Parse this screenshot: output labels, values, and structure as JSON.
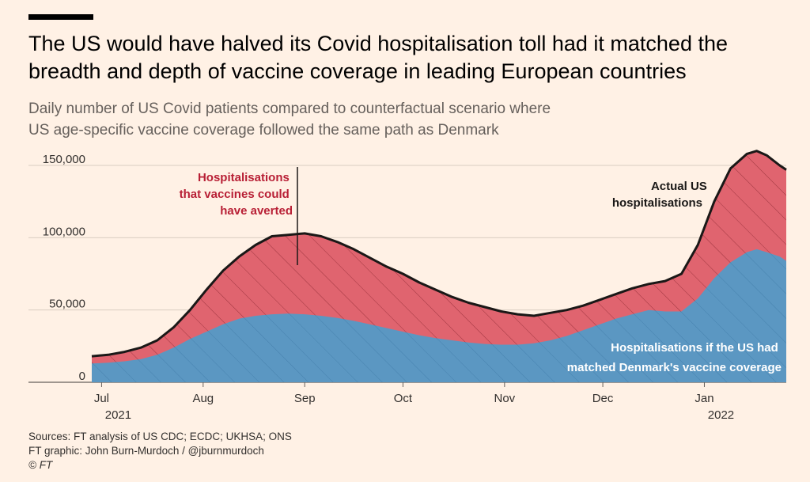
{
  "title": "The US would have halved its Covid hospitalisation toll had it matched the breadth and depth of vaccine coverage in leading European countries",
  "subtitle_lines": [
    "Daily number of US Covid patients compared to counterfactual scenario where",
    "US age-specific vaccine coverage followed the same path as Denmark"
  ],
  "sources_lines": [
    "Sources: FT analysis of US CDC; ECDC; UKHSA; ONS",
    "FT graphic: John Burn-Murdoch / @jburnmurdoch",
    "© FT"
  ],
  "colors": {
    "background": "#fff1e5",
    "actual": "#e0646f",
    "counterfactual": "#5b97c2",
    "line": "#1a1817",
    "annotation_red": "#b81f35"
  },
  "chart_data": {
    "type": "area",
    "x_unit": "days since 28 Jun 2021",
    "xlim": [
      0,
      212
    ],
    "ylim": [
      0,
      150000
    ],
    "yticks": [
      0,
      50000,
      100000,
      150000
    ],
    "ytick_labels": [
      "0",
      "50,000",
      "100,000",
      "150,000"
    ],
    "xticks": [
      {
        "x": 3,
        "label": "Jul",
        "year": "2021"
      },
      {
        "x": 34,
        "label": "Aug",
        "year": ""
      },
      {
        "x": 65,
        "label": "Sep",
        "year": ""
      },
      {
        "x": 95,
        "label": "Oct",
        "year": ""
      },
      {
        "x": 126,
        "label": "Nov",
        "year": ""
      },
      {
        "x": 156,
        "label": "Dec",
        "year": ""
      },
      {
        "x": 187,
        "label": "Jan",
        "year": "2022"
      }
    ],
    "series": [
      {
        "name": "Actual US hospitalisations",
        "x": [
          0,
          5,
          10,
          15,
          20,
          25,
          30,
          35,
          40,
          45,
          50,
          55,
          60,
          65,
          70,
          75,
          80,
          85,
          90,
          95,
          100,
          105,
          110,
          115,
          120,
          125,
          130,
          135,
          140,
          145,
          150,
          155,
          160,
          165,
          170,
          175,
          180,
          185,
          190,
          195,
          200,
          203,
          206,
          210,
          212
        ],
        "values": [
          18000,
          19000,
          21000,
          24000,
          29000,
          38000,
          50000,
          64000,
          77000,
          87000,
          95000,
          101000,
          102000,
          103000,
          101000,
          97000,
          92000,
          86000,
          80000,
          75000,
          69000,
          64000,
          59000,
          55000,
          52000,
          49000,
          47000,
          46000,
          48000,
          50000,
          53000,
          57000,
          61000,
          65000,
          68000,
          70000,
          75000,
          95000,
          125000,
          148000,
          158000,
          160000,
          157000,
          150000,
          147000
        ]
      },
      {
        "name": "Hospitalisations if the US had matched Denmark's vaccine coverage",
        "x": [
          0,
          5,
          10,
          15,
          20,
          25,
          30,
          35,
          40,
          45,
          50,
          55,
          60,
          65,
          70,
          75,
          80,
          85,
          90,
          95,
          100,
          105,
          110,
          115,
          120,
          125,
          130,
          135,
          140,
          145,
          150,
          155,
          160,
          165,
          170,
          175,
          180,
          185,
          190,
          195,
          200,
          203,
          206,
          210,
          212
        ],
        "values": [
          13000,
          13500,
          14500,
          16000,
          19000,
          24000,
          30000,
          35000,
          40000,
          44000,
          46000,
          47000,
          47500,
          47000,
          46000,
          44500,
          42500,
          40000,
          37500,
          35000,
          32500,
          30500,
          29000,
          27500,
          26500,
          26000,
          26000,
          27000,
          29000,
          32000,
          36000,
          40000,
          44000,
          47000,
          50000,
          49000,
          49000,
          58000,
          72000,
          83000,
          90000,
          92000,
          90000,
          87000,
          84000
        ]
      }
    ],
    "annotations": [
      {
        "name": "averted",
        "lines": [
          "Hospitalisations",
          "that vaccines could",
          "have averted"
        ]
      },
      {
        "name": "actual",
        "lines": [
          "Actual US",
          "hospitalisations"
        ]
      },
      {
        "name": "counterfactual",
        "lines": [
          "Hospitalisations if the US had",
          "matched Denmark's vaccine coverage"
        ]
      }
    ]
  }
}
